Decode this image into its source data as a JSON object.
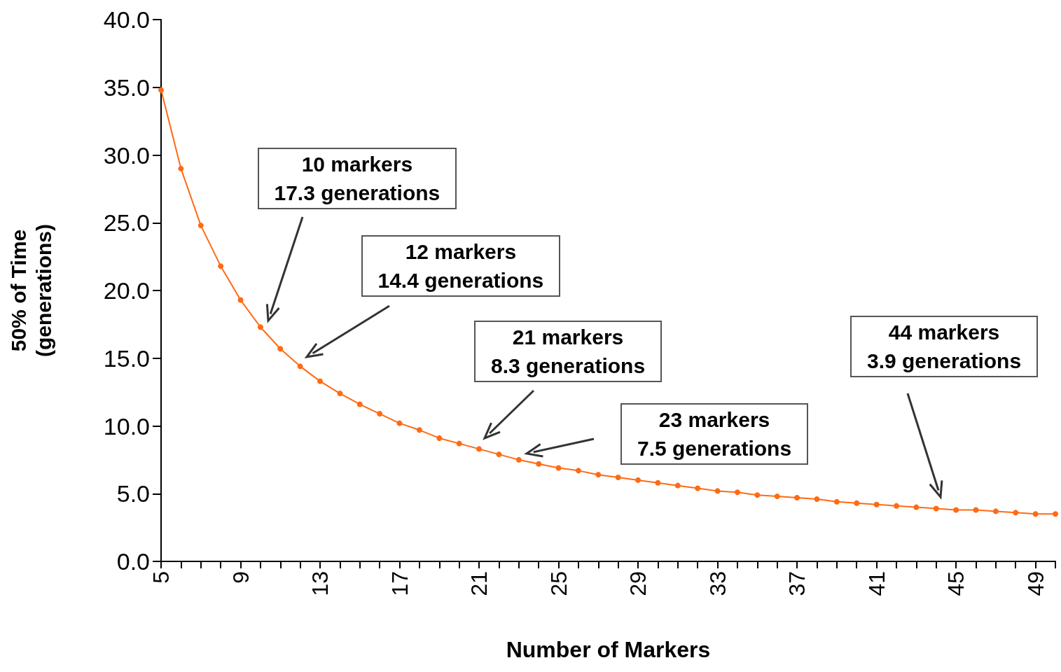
{
  "chart_data": {
    "type": "line",
    "xlabel": "Number of Markers",
    "ylabel": "50% of Time\n(generations)",
    "categories": [
      "5",
      null,
      null,
      null,
      "9",
      null,
      null,
      null,
      "13",
      null,
      null,
      null,
      "17",
      null,
      null,
      null,
      "21",
      null,
      null,
      null,
      "25",
      null,
      null,
      null,
      "29",
      null,
      null,
      null,
      "33",
      null,
      null,
      null,
      "37",
      null,
      null,
      null,
      "41",
      null,
      null,
      null,
      "45",
      null,
      null,
      null,
      "49",
      null
    ],
    "series": [
      {
        "color": "#ff6a13",
        "values": [
          34.8,
          29.0,
          24.8,
          21.8,
          19.3,
          17.3,
          15.7,
          14.4,
          13.3,
          12.4,
          11.6,
          10.9,
          10.2,
          9.7,
          9.1,
          8.7,
          8.3,
          7.9,
          7.5,
          7.2,
          6.9,
          6.7,
          6.4,
          6.2,
          6.0,
          5.8,
          5.6,
          5.4,
          5.2,
          5.1,
          4.9,
          4.8,
          4.7,
          4.6,
          4.4,
          4.3,
          4.2,
          4.1,
          4.0,
          3.9,
          3.8,
          3.8,
          3.7,
          3.6,
          3.5,
          3.5
        ]
      }
    ],
    "ylim": [
      0,
      40
    ],
    "yticks": [
      {
        "value": 0,
        "label": "0.0"
      },
      {
        "value": 5,
        "label": "5.0"
      },
      {
        "value": 10,
        "label": "10.0"
      },
      {
        "value": 15,
        "label": "15.0"
      },
      {
        "value": 20,
        "label": "20.0"
      },
      {
        "value": 25,
        "label": "25.0"
      },
      {
        "value": 30,
        "label": "30.0"
      },
      {
        "value": 35,
        "label": "35.0"
      },
      {
        "value": 40,
        "label": "40.0"
      }
    ],
    "grid": false,
    "marker": "circle",
    "line_style": "solid",
    "annotations": [
      "10 markers\n17.3 generations",
      "12 markers\n14.4 generations",
      "21 markers\n8.3 generations",
      "23 markers\n7.5 generations",
      "44 markers\n3.9 generations"
    ]
  }
}
